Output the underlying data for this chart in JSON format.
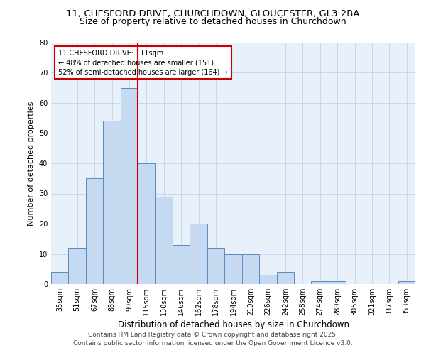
{
  "title1": "11, CHESFORD DRIVE, CHURCHDOWN, GLOUCESTER, GL3 2BA",
  "title2": "Size of property relative to detached houses in Churchdown",
  "xlabel": "Distribution of detached houses by size in Churchdown",
  "ylabel": "Number of detached properties",
  "bar_labels": [
    "35sqm",
    "51sqm",
    "67sqm",
    "83sqm",
    "99sqm",
    "115sqm",
    "130sqm",
    "146sqm",
    "162sqm",
    "178sqm",
    "194sqm",
    "210sqm",
    "226sqm",
    "242sqm",
    "258sqm",
    "274sqm",
    "289sqm",
    "305sqm",
    "321sqm",
    "337sqm",
    "353sqm"
  ],
  "bar_values": [
    4,
    12,
    35,
    54,
    65,
    40,
    29,
    13,
    20,
    12,
    10,
    10,
    3,
    4,
    0,
    1,
    1,
    0,
    0,
    0,
    1
  ],
  "bar_color": "#c5d9f0",
  "bar_edge_color": "#5a8abf",
  "vline_color": "#cc0000",
  "vline_x_index": 5,
  "annotation_line1": "11 CHESFORD DRIVE: 111sqm",
  "annotation_line2": "← 48% of detached houses are smaller (151)",
  "annotation_line3": "52% of semi-detached houses are larger (164) →",
  "annotation_box_color": "#cc0000",
  "ylim": [
    0,
    80
  ],
  "yticks": [
    0,
    10,
    20,
    30,
    40,
    50,
    60,
    70,
    80
  ],
  "grid_color": "#c8d8ec",
  "background_color": "#e8f0fa",
  "footer_line1": "Contains HM Land Registry data © Crown copyright and database right 2025.",
  "footer_line2": "Contains public sector information licensed under the Open Government Licence v3.0.",
  "title_fontsize": 9.5,
  "subtitle_fontsize": 9,
  "tick_fontsize": 7,
  "ylabel_fontsize": 8,
  "xlabel_fontsize": 8.5,
  "annotation_fontsize": 7,
  "footer_fontsize": 6.5
}
